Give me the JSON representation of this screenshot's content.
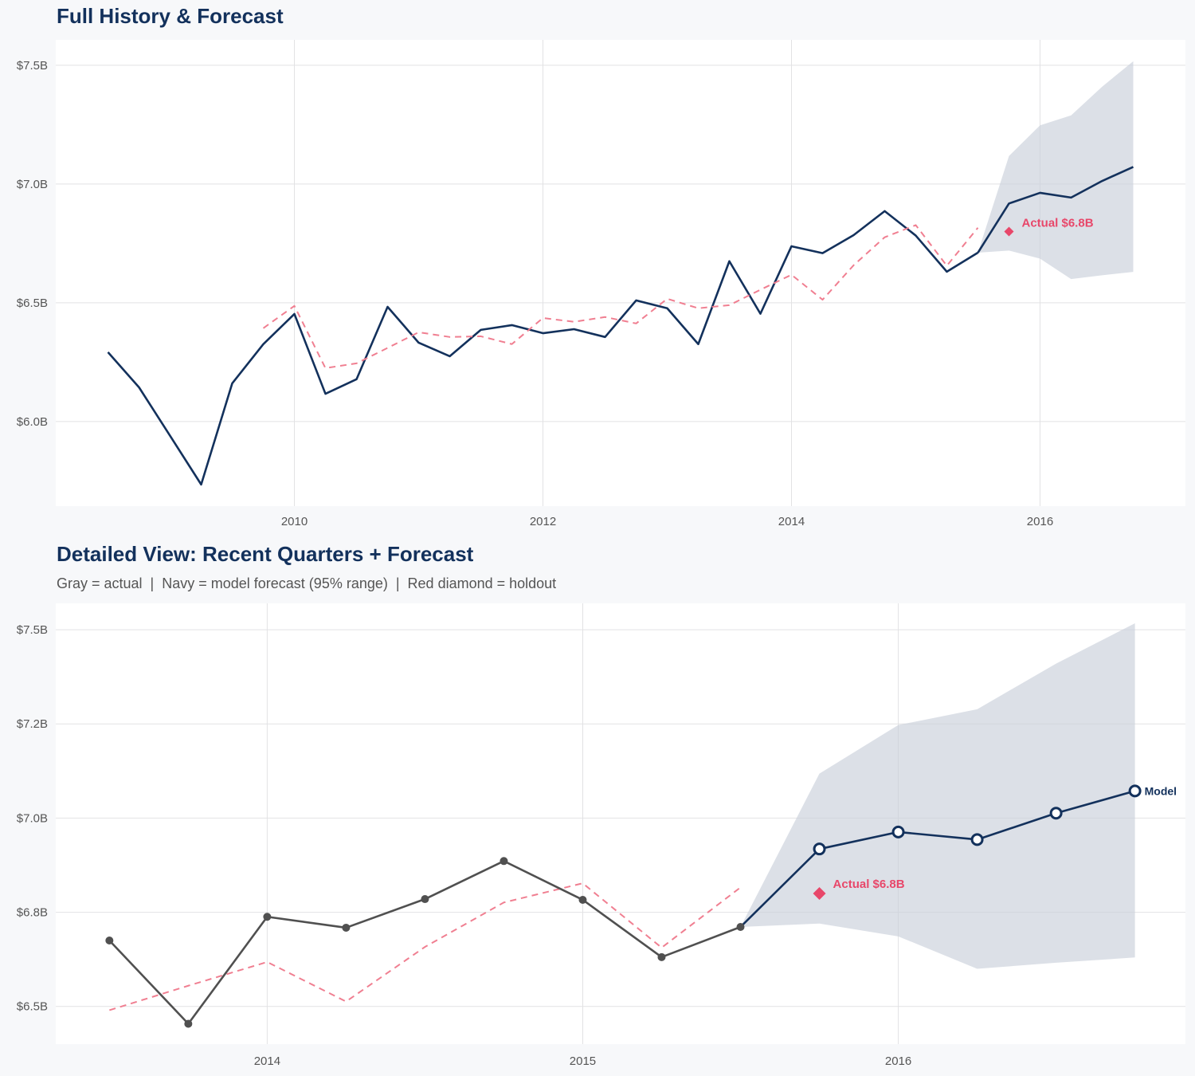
{
  "colors": {
    "navy": "#13315c",
    "band": "#c9d0da",
    "holdout": "#e8476a",
    "fitted": "#f07f91",
    "actual_gray": "#505050",
    "grid": "#e2e2e4",
    "background": "#f7f8fa"
  },
  "chart_data": [
    {
      "type": "line",
      "title": "Full History & Forecast",
      "subtitle": "",
      "xlabel": "",
      "ylabel": "",
      "xlim": [
        2008.08,
        2017.17
      ],
      "ylim": [
        5.644,
        7.607
      ],
      "grid": true,
      "x_ticks": [
        {
          "value": 2010,
          "label": "2010"
        },
        {
          "value": 2012,
          "label": "2012"
        },
        {
          "value": 2014,
          "label": "2014"
        },
        {
          "value": 2016,
          "label": "2016"
        }
      ],
      "y_ticks": [
        {
          "value": 6.0,
          "label": "$6.0B"
        },
        {
          "value": 6.5,
          "label": "$6.5B"
        },
        {
          "value": 7.0,
          "label": "$7.0B"
        },
        {
          "value": 7.5,
          "label": "$7.5B"
        }
      ],
      "series": [
        {
          "role": "actual",
          "color": "#13315c",
          "markers": false,
          "x": [
            2008.5,
            2008.75,
            2009,
            2009.25,
            2009.5,
            2009.75,
            2010,
            2010.25,
            2010.5,
            2010.75,
            2011,
            2011.25,
            2011.5,
            2011.75,
            2012,
            2012.25,
            2012.5,
            2012.75,
            2013,
            2013.25,
            2013.5,
            2013.75,
            2014,
            2014.25,
            2014.5,
            2014.75,
            2015,
            2015.25,
            2015.5
          ],
          "y": [
            6.292,
            6.144,
            5.94,
            5.735,
            6.161,
            6.326,
            6.453,
            6.117,
            6.178,
            6.483,
            6.332,
            6.275,
            6.386,
            6.406,
            6.372,
            6.389,
            6.356,
            6.51,
            6.477,
            6.326,
            6.675,
            6.454,
            6.738,
            6.709,
            6.785,
            6.886,
            6.783,
            6.631,
            6.711
          ]
        },
        {
          "role": "fitted",
          "color": "#f07f91",
          "dashed": true,
          "x": [
            2009.75,
            2010,
            2010.25,
            2010.5,
            2010.75,
            2011,
            2011.25,
            2011.5,
            2011.75,
            2012,
            2012.25,
            2012.5,
            2012.75,
            2013,
            2013.25,
            2013.5,
            2013.75,
            2014,
            2014.25,
            2014.5,
            2014.75,
            2015,
            2015.25,
            2015.5
          ],
          "y": [
            6.393,
            6.487,
            6.225,
            6.245,
            6.31,
            6.376,
            6.356,
            6.359,
            6.326,
            6.436,
            6.42,
            6.44,
            6.413,
            6.517,
            6.477,
            6.49,
            6.555,
            6.618,
            6.513,
            6.658,
            6.776,
            6.827,
            6.656,
            6.816
          ]
        },
        {
          "role": "forecast",
          "color": "#13315c",
          "markers": false,
          "x": [
            2015.5,
            2015.75,
            2016,
            2016.25,
            2016.5,
            2016.75
          ],
          "y": [
            6.711,
            6.918,
            6.963,
            6.943,
            7.013,
            7.072
          ],
          "upper": [
            6.711,
            7.118,
            7.247,
            7.289,
            7.41,
            7.517
          ],
          "lower": [
            6.711,
            6.72,
            6.686,
            6.6,
            6.616,
            6.63
          ]
        }
      ],
      "holdout": {
        "x": 2015.75,
        "y": 6.8,
        "label": "Actual $6.8B"
      }
    },
    {
      "type": "line",
      "title": "Detailed View: Recent Quarters + Forecast",
      "subtitle": "Gray = actual  |  Navy = model forecast (95% range)  |  Red diamond = holdout",
      "xlabel": "",
      "ylabel": "",
      "xlim": [
        2013.33,
        2016.91
      ],
      "ylim": [
        6.4,
        7.57
      ],
      "grid": true,
      "x_ticks": [
        {
          "value": 2014,
          "label": "2014"
        },
        {
          "value": 2015,
          "label": "2015"
        },
        {
          "value": 2016,
          "label": "2016"
        }
      ],
      "y_ticks": [
        {
          "value": 6.5,
          "label": "$6.5B"
        },
        {
          "value": 6.75,
          "label": "$6.8B"
        },
        {
          "value": 7.0,
          "label": "$7.0B"
        },
        {
          "value": 7.25,
          "label": "$7.2B"
        },
        {
          "value": 7.5,
          "label": "$7.5B"
        }
      ],
      "series": [
        {
          "role": "fitted",
          "color": "#f07f91",
          "dashed": true,
          "x": [
            2013.5,
            2013.75,
            2014,
            2014.25,
            2014.5,
            2014.75,
            2015,
            2015.25,
            2015.5
          ],
          "y": [
            6.49,
            6.555,
            6.618,
            6.513,
            6.658,
            6.776,
            6.827,
            6.656,
            6.816
          ]
        },
        {
          "role": "actual",
          "color": "#505050",
          "markers": "filled",
          "x": [
            2013.5,
            2013.75,
            2014,
            2014.25,
            2014.5,
            2014.75,
            2015,
            2015.25,
            2015.5
          ],
          "y": [
            6.675,
            6.454,
            6.738,
            6.709,
            6.785,
            6.886,
            6.783,
            6.631,
            6.711
          ]
        },
        {
          "role": "forecast",
          "color": "#13315c",
          "markers": "open",
          "x": [
            2015.5,
            2015.75,
            2016,
            2016.25,
            2016.5,
            2016.75
          ],
          "y": [
            6.711,
            6.918,
            6.963,
            6.943,
            7.013,
            7.072
          ],
          "upper": [
            6.711,
            7.118,
            7.247,
            7.289,
            7.41,
            7.517
          ],
          "lower": [
            6.711,
            6.72,
            6.686,
            6.6,
            6.616,
            6.63
          ],
          "end_label": "Model"
        }
      ],
      "holdout": {
        "x": 2015.75,
        "y": 6.8,
        "label": "Actual $6.8B"
      }
    }
  ]
}
